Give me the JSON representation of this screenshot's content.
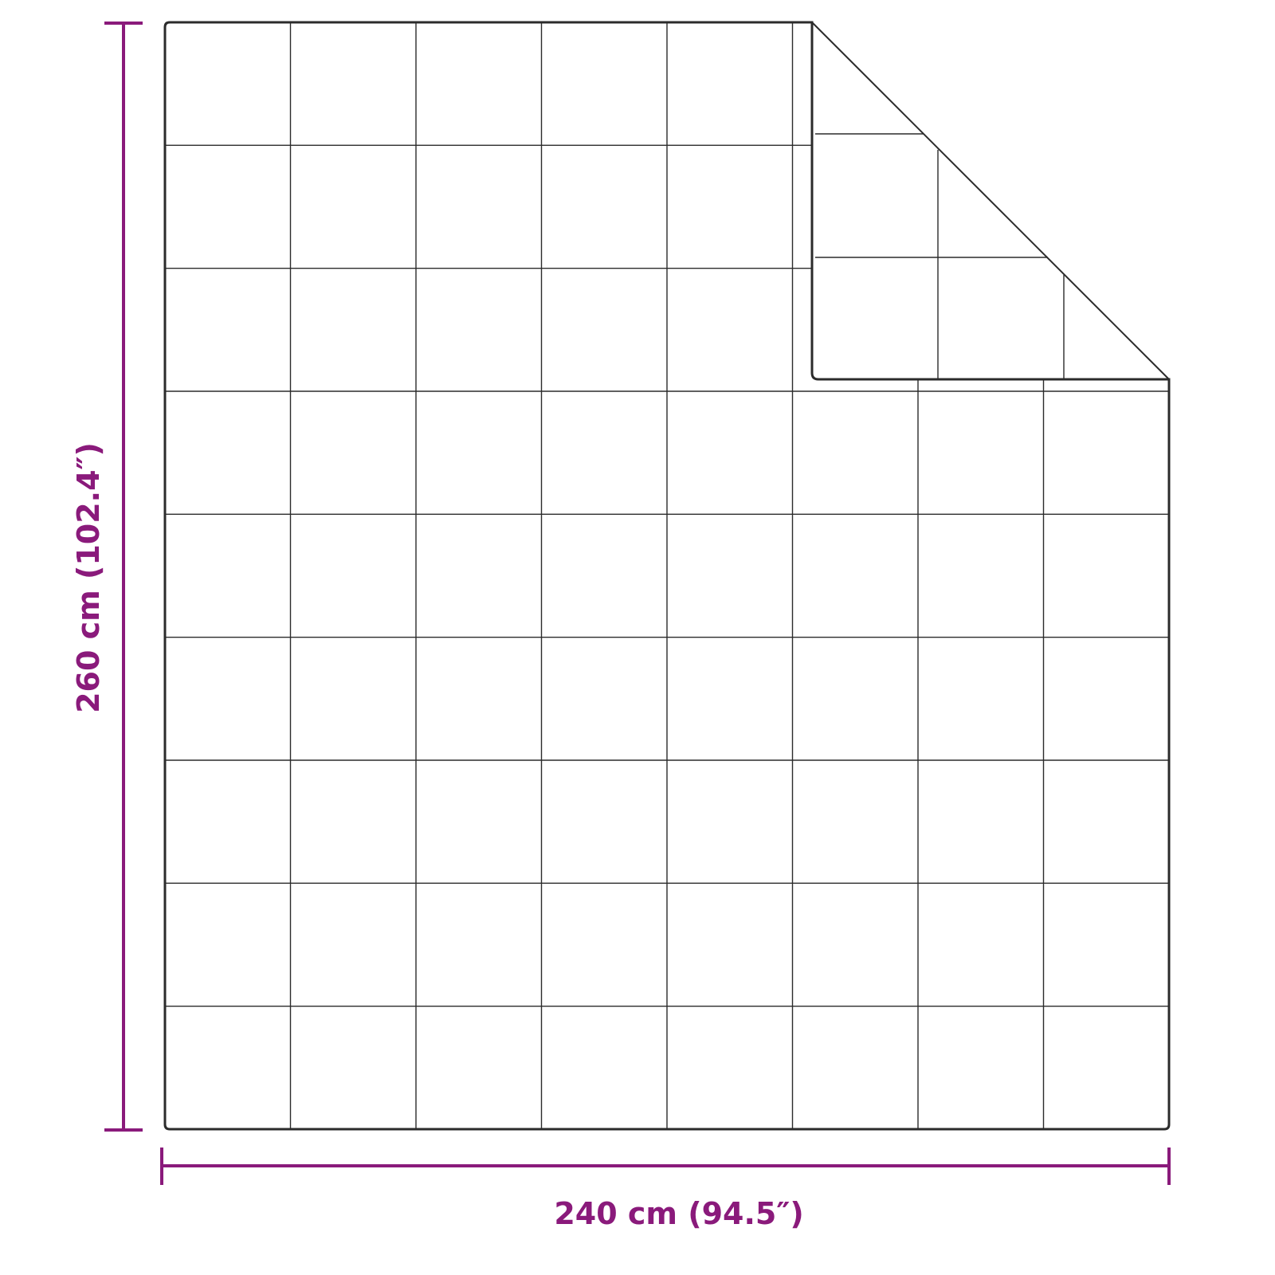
{
  "dimensions": {
    "width_label": "240 cm (94.5″)",
    "height_label": "260 cm (102.4″)"
  },
  "quilt": {
    "columns": 8,
    "rows": 9,
    "folded_corner": "top-right"
  },
  "colors": {
    "dimension": "#8a1a7b",
    "outline": "#2b2b2b",
    "background": "#ffffff"
  }
}
